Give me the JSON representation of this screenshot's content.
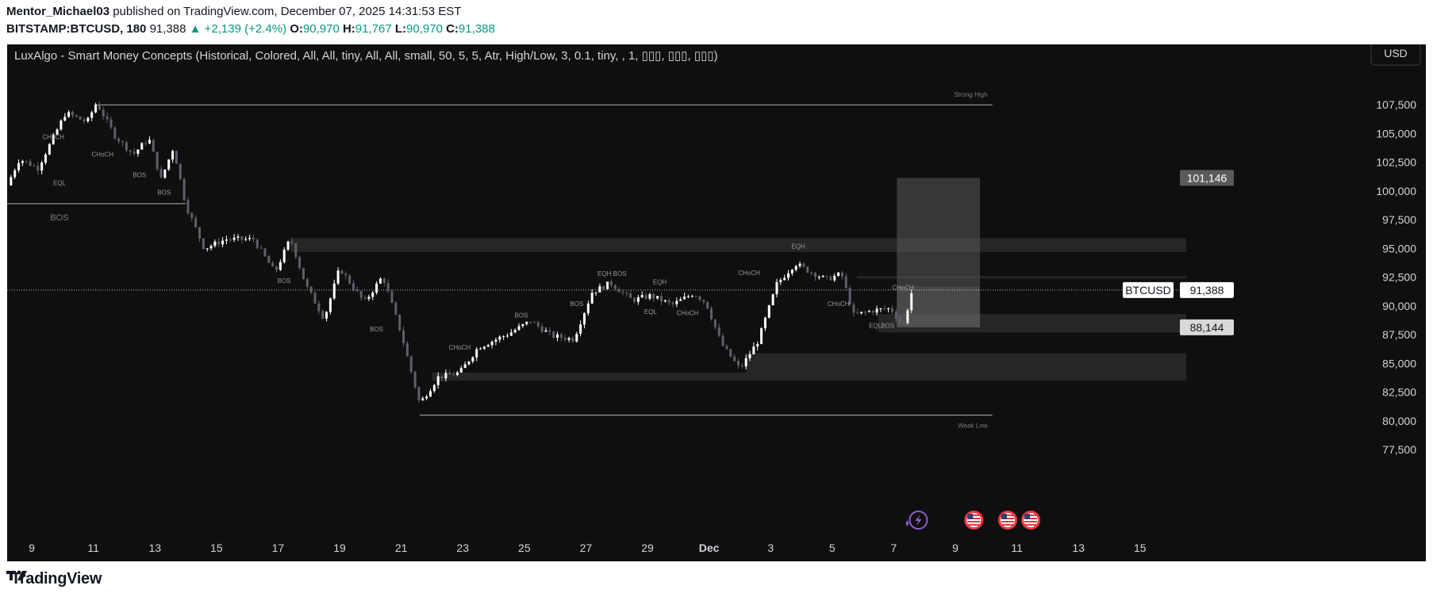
{
  "header": {
    "author": "Mentor_Michael03",
    "published_text": "published on TradingView.com, December 07, 2025 14:31:53 EST",
    "symbol_full": "BITSTAMP:BTCUSD, 180",
    "last": "91,388",
    "change": "▲ +2,139 (+2.4%)",
    "open_label": "O:",
    "open": "90,970",
    "high_label": "H:",
    "high": "91,767",
    "low_label": "L:",
    "low": "90,970",
    "close_label": "C:",
    "close": "91,388"
  },
  "indicator_title": "LuxAlgo - Smart Money Concepts (Historical, Colored, All, All, tiny, All, All, small, 50, 5, 5, Atr, High/Low, 3, 0.1, tiny, , 1, ▯▯▯, ▯▯▯, ▯▯▯)",
  "currency_button": "USD",
  "price_labels": {
    "symbol": "BTCUSD",
    "current": "91,388",
    "target": "101,146",
    "stop": "88,144"
  },
  "footer": {
    "brand": "TradingView"
  },
  "colors": {
    "up": "#ffffff",
    "down": "#5d606b",
    "background": "#0f0f0f",
    "green": "#089981",
    "zone": "#2a2a2a",
    "axis_text": "#d1d4dc"
  },
  "icons": [
    "lightning-icon",
    "us-flag-icon",
    "us-flag-icon",
    "us-flag-icon"
  ],
  "chart_data": {
    "type": "candlestick",
    "y_ticks": [
      77500,
      80000,
      82500,
      85000,
      87500,
      90000,
      92500,
      95000,
      97500,
      100000,
      102500,
      105000,
      107500
    ],
    "ylim": [
      76200,
      110000
    ],
    "x_tick_labels": [
      "9",
      "11",
      "13",
      "15",
      "17",
      "19",
      "21",
      "23",
      "25",
      "27",
      "29",
      "Dec",
      "3",
      "5",
      "7",
      "9",
      "11",
      "13",
      "15"
    ],
    "x_tick_days": [
      9,
      11,
      13,
      15,
      17,
      19,
      21,
      23,
      25,
      27,
      29,
      31,
      33,
      35,
      37,
      39,
      41,
      43,
      45
    ],
    "xlim_days": [
      8.2,
      46.5
    ],
    "key_points": [
      [
        8.2,
        100500
      ],
      [
        8.6,
        102800
      ],
      [
        9.2,
        102000
      ],
      [
        10.1,
        106800
      ],
      [
        10.8,
        106000
      ],
      [
        11.1,
        107700
      ],
      [
        11.7,
        104800
      ],
      [
        12.3,
        103200
      ],
      [
        12.8,
        104600
      ],
      [
        13.2,
        101000
      ],
      [
        13.6,
        103800
      ],
      [
        14.0,
        98800
      ],
      [
        14.6,
        95000
      ],
      [
        15.3,
        95800
      ],
      [
        16.2,
        95800
      ],
      [
        16.9,
        92900
      ],
      [
        17.4,
        95900
      ],
      [
        17.9,
        91800
      ],
      [
        18.5,
        88900
      ],
      [
        19.0,
        93300
      ],
      [
        19.8,
        90300
      ],
      [
        20.4,
        92600
      ],
      [
        21.0,
        87600
      ],
      [
        21.6,
        81500
      ],
      [
        22.2,
        83800
      ],
      [
        22.9,
        84200
      ],
      [
        23.5,
        86400
      ],
      [
        24.5,
        87600
      ],
      [
        25.2,
        88700
      ],
      [
        25.9,
        87400
      ],
      [
        26.6,
        87100
      ],
      [
        27.2,
        91200
      ],
      [
        27.8,
        92000
      ],
      [
        28.5,
        90500
      ],
      [
        29.1,
        90900
      ],
      [
        29.8,
        90100
      ],
      [
        30.5,
        91100
      ],
      [
        30.9,
        90300
      ],
      [
        31.4,
        86700
      ],
      [
        32.0,
        84500
      ],
      [
        32.6,
        87000
      ],
      [
        33.2,
        91900
      ],
      [
        33.8,
        93700
      ],
      [
        34.2,
        93100
      ],
      [
        34.8,
        92300
      ],
      [
        35.3,
        92800
      ],
      [
        35.7,
        89200
      ],
      [
        36.3,
        89600
      ],
      [
        36.9,
        89800
      ],
      [
        37.3,
        88200
      ],
      [
        37.6,
        91388
      ]
    ],
    "zones": [
      {
        "from": 17.4,
        "to": 46.5,
        "low": 94700,
        "high": 95900
      },
      {
        "from": 22.0,
        "to": 46.5,
        "low": 83500,
        "high": 84200
      },
      {
        "from": 32.2,
        "to": 46.5,
        "low": 84200,
        "high": 85900
      },
      {
        "from": 35.8,
        "to": 46.5,
        "low": 92400,
        "high": 92600
      },
      {
        "from": 36.5,
        "to": 46.5,
        "low": 87700,
        "high": 89300
      }
    ],
    "position_box": {
      "from": 37.1,
      "to": 39.8,
      "entry": 91700,
      "target": 101146,
      "stop": 88144
    },
    "lines": [
      {
        "label": "Strong High",
        "y": 107500,
        "from": 11.1,
        "to": 40.2
      },
      {
        "label": "Weak Low",
        "y": 80500,
        "from": 21.6,
        "to": 40.2
      },
      {
        "label": "BOS",
        "y": 98900,
        "from": 8.2,
        "to": 14.0
      }
    ],
    "annotations": [
      {
        "text": "CHoCH",
        "x": 9.7,
        "y": 104500
      },
      {
        "text": "EQL",
        "x": 9.9,
        "y": 100500
      },
      {
        "text": "CHoCH",
        "x": 11.3,
        "y": 103000
      },
      {
        "text": "BOS",
        "x": 12.5,
        "y": 101200
      },
      {
        "text": "BOS",
        "x": 13.3,
        "y": 99700
      },
      {
        "text": "BOS",
        "x": 17.2,
        "y": 92000
      },
      {
        "text": "BOS",
        "x": 20.2,
        "y": 87800
      },
      {
        "text": "CHoCH",
        "x": 22.9,
        "y": 86200
      },
      {
        "text": "BOS",
        "x": 24.9,
        "y": 89000
      },
      {
        "text": "BOS",
        "x": 26.7,
        "y": 90000
      },
      {
        "text": "EQH",
        "x": 27.6,
        "y": 92600
      },
      {
        "text": "BOS",
        "x": 28.1,
        "y": 92600
      },
      {
        "text": "EQH",
        "x": 29.4,
        "y": 91900
      },
      {
        "text": "EQL",
        "x": 29.1,
        "y": 89300
      },
      {
        "text": "CHoCH",
        "x": 30.3,
        "y": 89200
      },
      {
        "text": "CHoCH",
        "x": 32.3,
        "y": 92700
      },
      {
        "text": "EQH",
        "x": 33.9,
        "y": 95000
      },
      {
        "text": "CHoCH",
        "x": 35.2,
        "y": 90000
      },
      {
        "text": "CHoCH",
        "x": 37.3,
        "y": 91400
      },
      {
        "text": "EQL",
        "x": 36.4,
        "y": 88100
      },
      {
        "text": "BOS",
        "x": 36.8,
        "y": 88100
      }
    ]
  }
}
